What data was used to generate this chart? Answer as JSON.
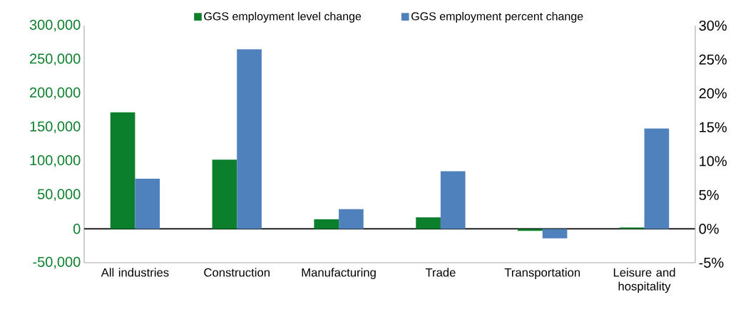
{
  "chart_data": {
    "type": "bar",
    "categories": [
      "All industries",
      "Construction",
      "Manufacturing",
      "Trade",
      "Transportation",
      "Leisure and hospitality"
    ],
    "series": [
      {
        "name": "GGS employment level change",
        "color": "#0b7f2b",
        "values": [
          172000,
          102000,
          14000,
          17000,
          -3000,
          2000
        ]
      },
      {
        "name": "GGS employment percent change",
        "color": "#4f81bd",
        "axis": "y2",
        "values": [
          7.4,
          26.5,
          2.9,
          8.5,
          -1.4,
          14.8
        ]
      }
    ],
    "ylim": [
      -50000,
      300000
    ],
    "yticks": [
      {
        "value": -50000,
        "label": "-50,000"
      },
      {
        "value": 0,
        "label": "0"
      },
      {
        "value": 50000,
        "label": "50,000"
      },
      {
        "value": 100000,
        "label": "100,000"
      },
      {
        "value": 150000,
        "label": "150,000"
      },
      {
        "value": 200000,
        "label": "200,000"
      },
      {
        "value": 250000,
        "label": "250,000"
      },
      {
        "value": 300000,
        "label": "300,000"
      }
    ],
    "y2lim": [
      -5,
      30
    ],
    "y2ticks": [
      {
        "value": -5,
        "label": "-5%"
      },
      {
        "value": 0,
        "label": "0%"
      },
      {
        "value": 5,
        "label": "5%"
      },
      {
        "value": 10,
        "label": "10%"
      },
      {
        "value": 15,
        "label": "15%"
      },
      {
        "value": 20,
        "label": "20%"
      },
      {
        "value": 25,
        "label": "25%"
      },
      {
        "value": 30,
        "label": "30%"
      }
    ],
    "legend": "top"
  }
}
